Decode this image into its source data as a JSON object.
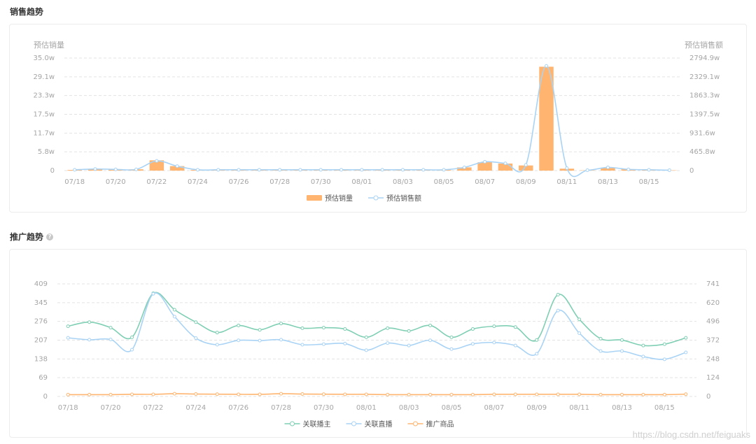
{
  "sections": {
    "sales_title": "销售趋势",
    "promo_title": "推广趋势",
    "help_glyph": "?"
  },
  "watermark": "https://blog.csdn.net/feiguaks",
  "colors": {
    "bar": "#ffb570",
    "sales_line": "#a9d3f5",
    "anchor_line": "#7fcfb3",
    "live_line": "#a9d3f5",
    "product_line": "#ffb570",
    "grid": "#e3e3e3"
  },
  "chart_data": [
    {
      "type": "bar",
      "left_axis_title": "预估销量",
      "right_axis_title": "预估销售额",
      "left_ticks": [
        "0",
        "5.8w",
        "11.7w",
        "17.5w",
        "23.3w",
        "29.1w",
        "35.0w"
      ],
      "right_ticks": [
        "0",
        "465.8w",
        "931.6w",
        "1397.5w",
        "1863.3w",
        "2329.1w",
        "2794.9w"
      ],
      "left_ylim": [
        0,
        35.0
      ],
      "right_ylim": [
        0,
        2794.9
      ],
      "x_tick_labels": [
        "07/18",
        "07/20",
        "07/22",
        "07/24",
        "07/26",
        "07/28",
        "07/30",
        "08/01",
        "08/03",
        "08/05",
        "08/07",
        "08/09",
        "08/11",
        "08/13",
        "08/15"
      ],
      "categories": [
        "07/18",
        "07/19",
        "07/20",
        "07/21",
        "07/22",
        "07/23",
        "07/24",
        "07/25",
        "07/26",
        "07/27",
        "07/28",
        "07/29",
        "07/30",
        "07/31",
        "08/01",
        "08/02",
        "08/03",
        "08/04",
        "08/05",
        "08/06",
        "08/07",
        "08/08",
        "08/09",
        "08/10",
        "08/11",
        "08/12",
        "08/13",
        "08/14",
        "08/15",
        "08/16"
      ],
      "series": [
        {
          "name": "预估销量",
          "kind": "bar",
          "axis": "left",
          "values": [
            0.2,
            0.5,
            0.3,
            0.4,
            3.2,
            1.4,
            0.2,
            0.2,
            0.2,
            0.2,
            0.2,
            0.2,
            0.2,
            0.2,
            0.2,
            0.2,
            0.2,
            0.2,
            0.2,
            1.0,
            2.6,
            2.2,
            1.6,
            32.3,
            0.6,
            0.1,
            0.8,
            0.4,
            0.2,
            0.1
          ]
        },
        {
          "name": "预估销售额",
          "kind": "line",
          "axis": "right",
          "values": [
            20,
            40,
            30,
            30,
            240,
            110,
            20,
            20,
            20,
            20,
            20,
            20,
            20,
            20,
            20,
            20,
            20,
            20,
            20,
            80,
            220,
            180,
            140,
            2600,
            60,
            10,
            80,
            30,
            20,
            10
          ]
        }
      ]
    },
    {
      "type": "line",
      "left_ticks": [
        "0",
        "69",
        "138",
        "207",
        "276",
        "345",
        "409"
      ],
      "right_ticks": [
        "0",
        "124",
        "248",
        "372",
        "496",
        "620",
        "741"
      ],
      "left_ylim": [
        0,
        409
      ],
      "right_ylim": [
        0,
        741
      ],
      "x_tick_labels": [
        "07/18",
        "07/20",
        "07/22",
        "07/24",
        "07/26",
        "07/28",
        "07/30",
        "08/01",
        "08/03",
        "08/05",
        "08/07",
        "08/09",
        "08/11",
        "08/13",
        "08/15"
      ],
      "categories": [
        "07/18",
        "07/19",
        "07/20",
        "07/21",
        "07/22",
        "07/23",
        "07/24",
        "07/25",
        "07/26",
        "07/27",
        "07/28",
        "07/29",
        "07/30",
        "07/31",
        "08/01",
        "08/02",
        "08/03",
        "08/04",
        "08/05",
        "08/06",
        "08/07",
        "08/08",
        "08/09",
        "08/10",
        "08/11",
        "08/12",
        "08/13",
        "08/14",
        "08/15",
        "08/16"
      ],
      "series": [
        {
          "name": "关联播主",
          "axis": "left",
          "values": [
            255,
            270,
            250,
            215,
            375,
            315,
            270,
            232,
            258,
            242,
            265,
            248,
            250,
            245,
            215,
            248,
            238,
            258,
            215,
            245,
            255,
            252,
            205,
            370,
            280,
            210,
            205,
            185,
            190,
            213
          ]
        },
        {
          "name": "关联直播",
          "axis": "left",
          "values": [
            213,
            206,
            207,
            170,
            373,
            290,
            212,
            188,
            204,
            203,
            206,
            188,
            190,
            192,
            168,
            194,
            185,
            204,
            172,
            191,
            196,
            185,
            155,
            312,
            230,
            165,
            165,
            145,
            135,
            160
          ]
        },
        {
          "name": "推广商品",
          "axis": "right",
          "values": [
            12,
            12,
            12,
            14,
            14,
            18,
            16,
            15,
            14,
            14,
            18,
            16,
            15,
            14,
            14,
            12,
            12,
            12,
            12,
            12,
            14,
            14,
            14,
            14,
            14,
            12,
            12,
            12,
            12,
            15
          ]
        }
      ]
    }
  ]
}
